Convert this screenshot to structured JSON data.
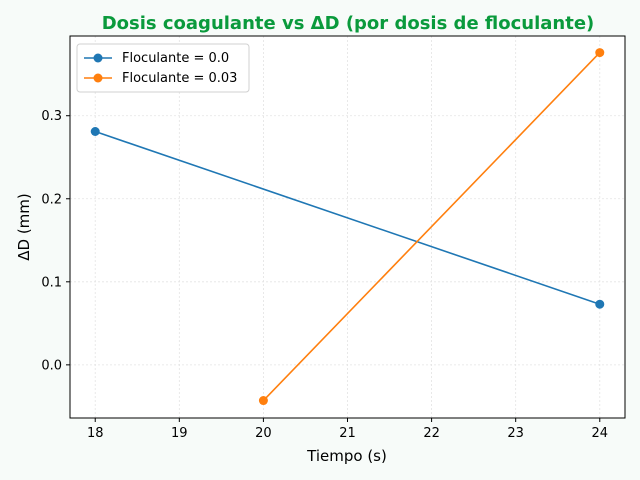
{
  "chart_data": {
    "type": "line",
    "title": "Dosis coagulante vs ΔD (por dosis de floculante)",
    "title_color": "#0a9a3c",
    "xlabel": "Tiempo (s)",
    "ylabel": "ΔD (mm)",
    "xlim": [
      17.7,
      24.3
    ],
    "ylim": [
      -0.064,
      0.396
    ],
    "x_ticks": [
      18,
      19,
      20,
      21,
      22,
      23,
      24
    ],
    "y_ticks": [
      0.0,
      0.1,
      0.2,
      0.3
    ],
    "x_tick_labels": [
      "18",
      "19",
      "20",
      "21",
      "22",
      "23",
      "24"
    ],
    "y_tick_labels": [
      "0.0",
      "0.1",
      "0.2",
      "0.3"
    ],
    "grid": true,
    "legend_position": "top-left",
    "series": [
      {
        "name": "Floculante = 0.0",
        "color": "#1f77b4",
        "x": [
          18,
          24
        ],
        "y": [
          0.281,
          0.073
        ]
      },
      {
        "name": "Floculante = 0.03",
        "color": "#ff7f0e",
        "x": [
          20,
          24
        ],
        "y": [
          -0.043,
          0.376
        ]
      }
    ]
  }
}
